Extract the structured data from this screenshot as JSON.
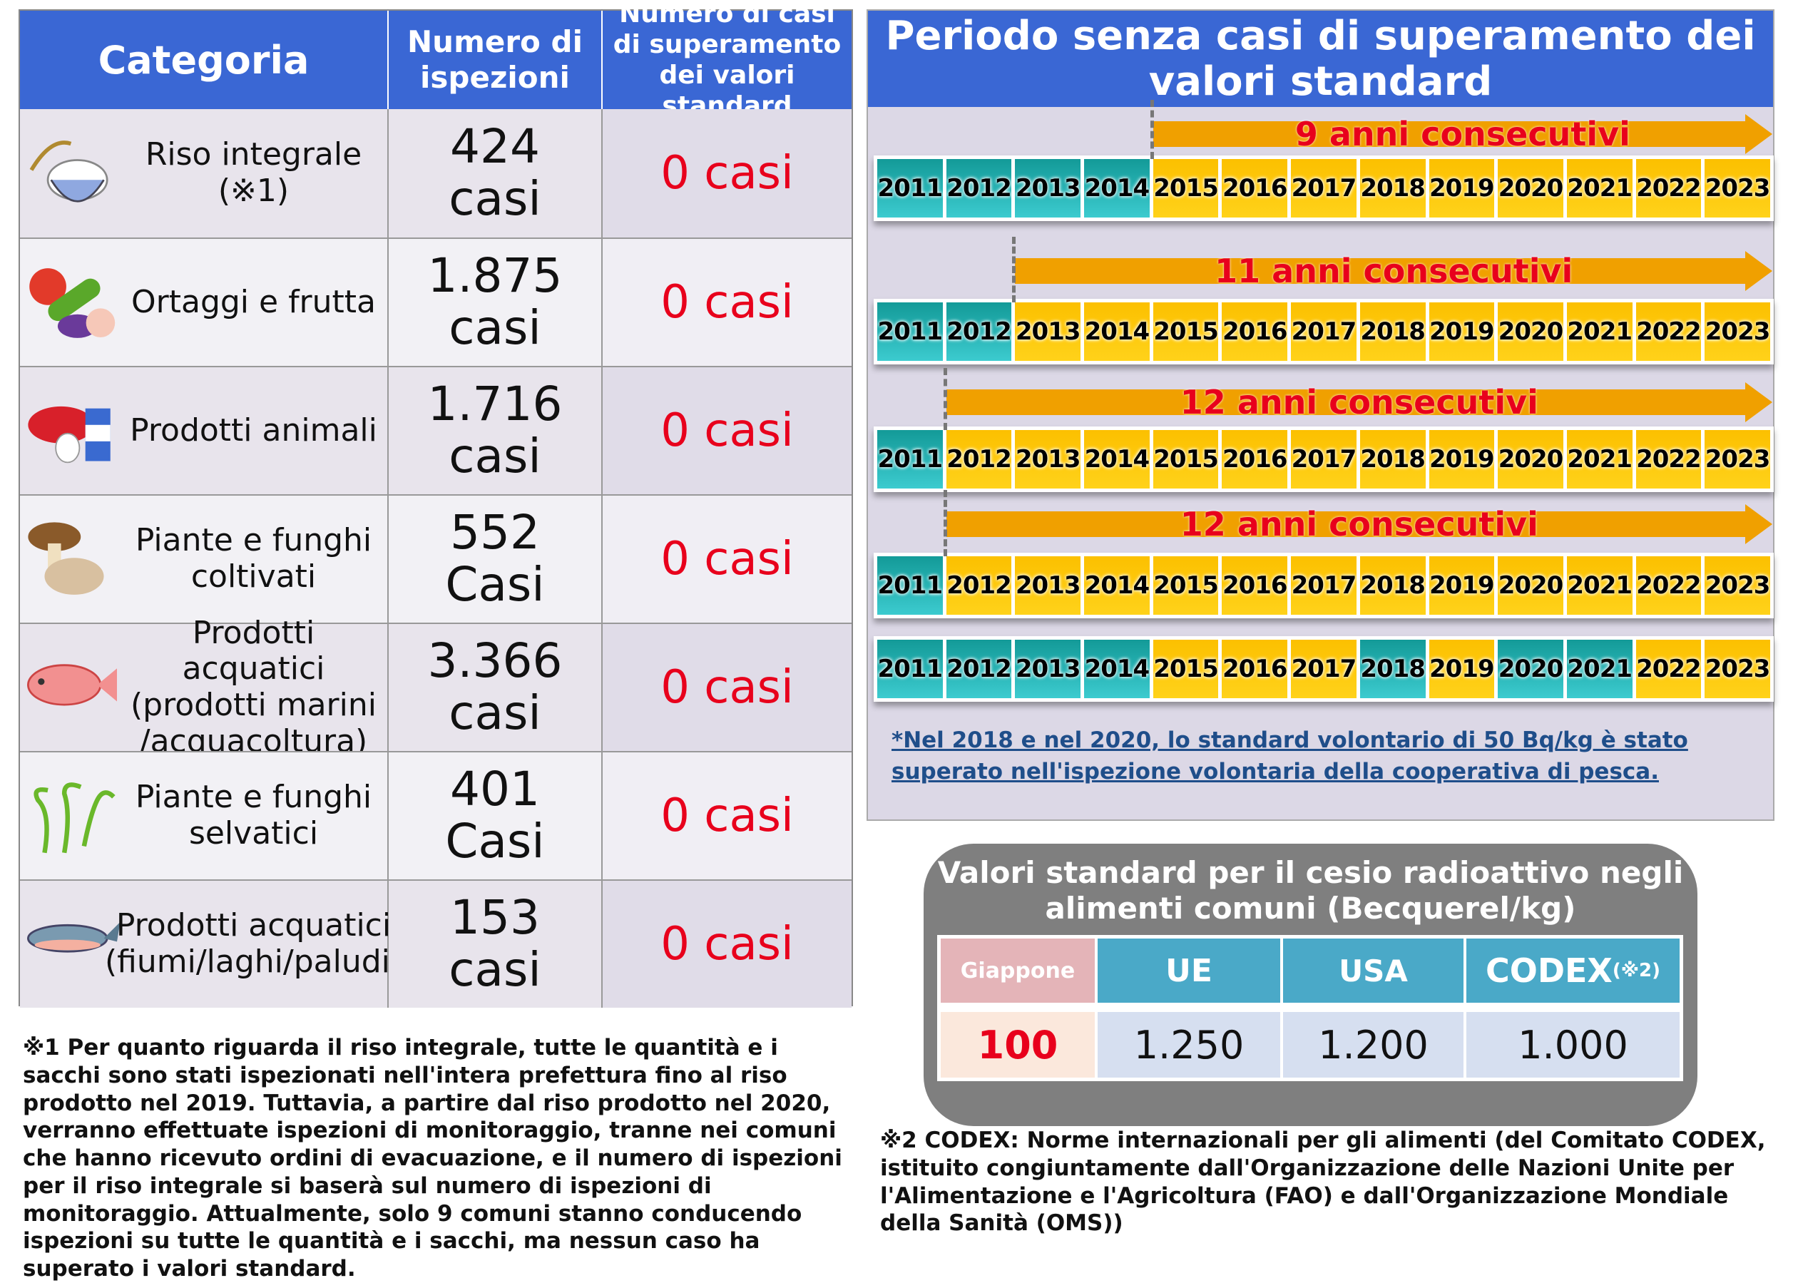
{
  "left_table": {
    "headers": [
      "Categoria",
      "Numero di ispezioni",
      "Numero di casi di superamento dei valori standard"
    ],
    "rows": [
      {
        "category": "Riso integrale (※1)",
        "icon": "rice-icon",
        "inspections": "424\ncasi",
        "exceedances": "0 casi"
      },
      {
        "category": "Ortaggi e frutta",
        "icon": "vegetables-icon",
        "inspections": "1.875\ncasi",
        "exceedances": "0 casi"
      },
      {
        "category": "Prodotti animali",
        "icon": "meat-milk-egg-icon",
        "inspections": "1.716\ncasi",
        "exceedances": "0 casi"
      },
      {
        "category": "Piante e funghi coltivati",
        "icon": "mushroom-icon",
        "inspections": "552\nCasi",
        "exceedances": "0 casi"
      },
      {
        "category": "Prodotti acquatici (prodotti marini /acquacoltura)",
        "icon": "sea-bream-icon",
        "inspections": "3.366\ncasi",
        "exceedances": "0 casi"
      },
      {
        "category": "Piante e funghi selvatici",
        "icon": "fern-icon",
        "inspections": "401\nCasi",
        "exceedances": "0 casi"
      },
      {
        "category": "Prodotti acquatici (fiumi/laghi/paludi)",
        "icon": "salmon-icon",
        "inspections": "153\ncasi",
        "exceedances": "0 casi"
      }
    ]
  },
  "note1": "※1 Per quanto riguarda il riso integrale, tutte le quantità e i sacchi sono stati ispezionati nell'intera prefettura fino al riso prodotto nel 2019. Tuttavia, a partire dal riso prodotto nel 2020, verranno effettuate ispezioni di monitoraggio, tranne nei comuni che hanno ricevuto ordini di evacuazione, e il numero di ispezioni per il riso integrale si baserà sul numero di ispezioni di monitoraggio. Attualmente, solo 9 comuni stanno conducendo ispezioni su tutte le quantità e i sacchi, ma nessun caso ha superato i valori standard.",
  "timeline": {
    "title": "Periodo senza casi di superamento dei valori standard",
    "years": [
      "2011",
      "2012",
      "2013",
      "2014",
      "2015",
      "2016",
      "2017",
      "2018",
      "2019",
      "2020",
      "2021",
      "2022",
      "2023"
    ],
    "colors": {
      "exceeded": "#1fb0b0",
      "clear": "#fcc800",
      "arrow": "#f0a000",
      "arrow_text": "#e8001c"
    },
    "rows": [
      {
        "label": "9 anni consecutivi",
        "teal_years": [
          "2011",
          "2012",
          "2013",
          "2014"
        ]
      },
      {
        "label": "11 anni consecutivi",
        "teal_years": [
          "2011",
          "2012"
        ]
      },
      {
        "label": "12 anni consecutivi",
        "teal_years": [
          "2011"
        ]
      },
      {
        "label": "12 anni consecutivi",
        "teal_years": [
          "2011"
        ]
      },
      {
        "label": "",
        "teal_years": [
          "2011",
          "2012",
          "2013",
          "2014",
          "2018",
          "2020",
          "2021"
        ]
      }
    ],
    "note": "*Nel 2018 e nel 2020, lo standard volontario di 50 Bq/kg è stato superato nell'ispezione volontaria della cooperativa di pesca."
  },
  "standards": {
    "title": "Valori standard per il cesio radioattivo negli alimenti comuni (Becquerel/kg)",
    "columns": [
      {
        "name": "Giappone",
        "value": "100"
      },
      {
        "name": "UE",
        "value": "1.250"
      },
      {
        "name": "USA",
        "value": "1.200"
      },
      {
        "name": "CODEX",
        "suffix": "(※2)",
        "value": "1.000"
      }
    ]
  },
  "note2": "※2 CODEX: Norme internazionali per gli alimenti (del Comitato CODEX, istituito congiuntamente dall'Organizzazione delle Nazioni Unite per l'Alimentazione e l'Agricoltura (FAO) e dall'Organizzazione Mondiale della Sanità (OMS))"
}
